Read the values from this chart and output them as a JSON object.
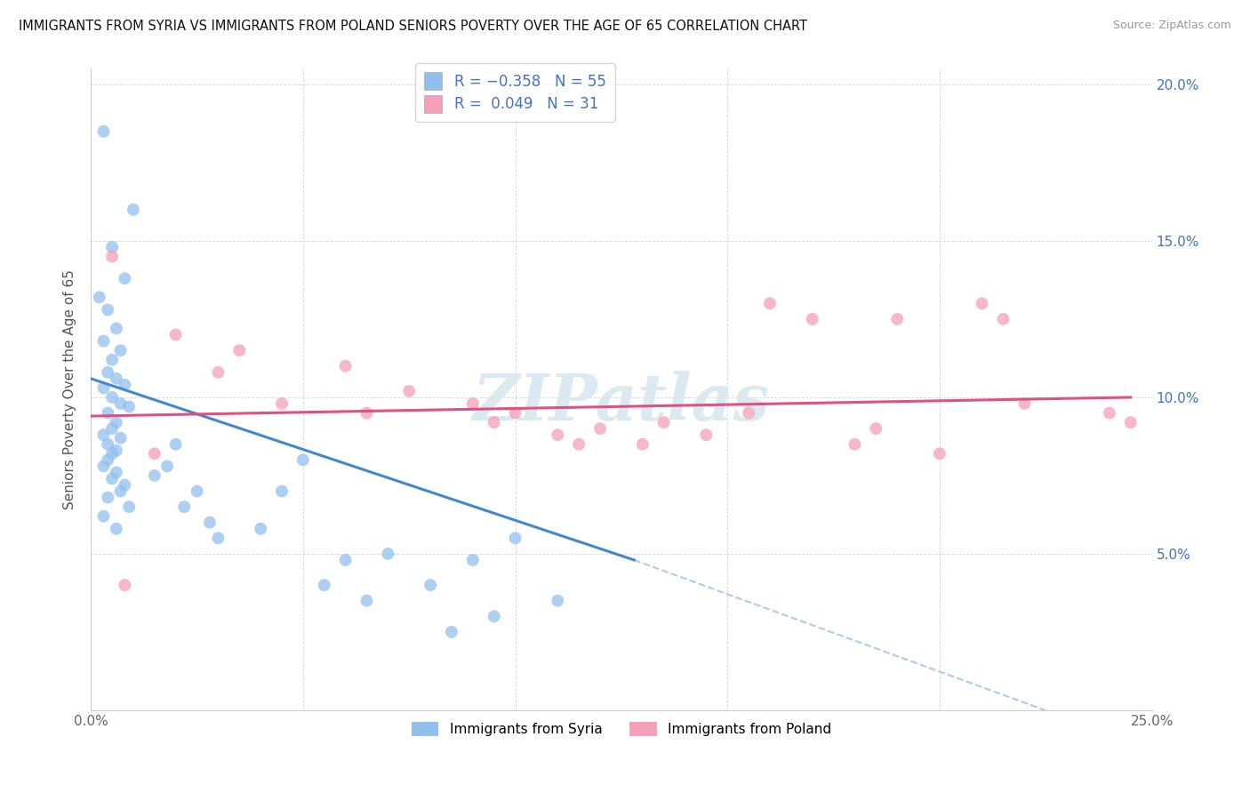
{
  "title": "IMMIGRANTS FROM SYRIA VS IMMIGRANTS FROM POLAND SENIORS POVERTY OVER THE AGE OF 65 CORRELATION CHART",
  "source": "Source: ZipAtlas.com",
  "ylabel": "Seniors Poverty Over the Age of 65",
  "xlim": [
    0.0,
    0.25
  ],
  "ylim": [
    0.0,
    0.205
  ],
  "syria_color": "#90c0ee",
  "poland_color": "#f4a0b8",
  "syria_R": -0.358,
  "syria_N": 55,
  "poland_R": 0.049,
  "poland_N": 31,
  "syria_line_color": "#4488cc",
  "poland_line_color": "#e05080",
  "dashed_line_color": "#aaccee",
  "watermark": "ZIPatlas",
  "legend_label_syria": "Immigrants from Syria",
  "legend_label_poland": "Immigrants from Poland",
  "syria_scatter_x": [
    0.003,
    0.01,
    0.005,
    0.008,
    0.002,
    0.004,
    0.006,
    0.003,
    0.007,
    0.005,
    0.004,
    0.006,
    0.008,
    0.003,
    0.005,
    0.007,
    0.009,
    0.004,
    0.006,
    0.005,
    0.003,
    0.007,
    0.004,
    0.006,
    0.005,
    0.004,
    0.003,
    0.006,
    0.005,
    0.008,
    0.007,
    0.004,
    0.009,
    0.003,
    0.006,
    0.02,
    0.018,
    0.015,
    0.025,
    0.022,
    0.028,
    0.03,
    0.05,
    0.045,
    0.04,
    0.06,
    0.055,
    0.065,
    0.1,
    0.09,
    0.08,
    0.11,
    0.095,
    0.085,
    0.07
  ],
  "syria_scatter_y": [
    0.185,
    0.16,
    0.148,
    0.138,
    0.132,
    0.128,
    0.122,
    0.118,
    0.115,
    0.112,
    0.108,
    0.106,
    0.104,
    0.103,
    0.1,
    0.098,
    0.097,
    0.095,
    0.092,
    0.09,
    0.088,
    0.087,
    0.085,
    0.083,
    0.082,
    0.08,
    0.078,
    0.076,
    0.074,
    0.072,
    0.07,
    0.068,
    0.065,
    0.062,
    0.058,
    0.085,
    0.078,
    0.075,
    0.07,
    0.065,
    0.06,
    0.055,
    0.08,
    0.07,
    0.058,
    0.048,
    0.04,
    0.035,
    0.055,
    0.048,
    0.04,
    0.035,
    0.03,
    0.025,
    0.05
  ],
  "poland_scatter_x": [
    0.005,
    0.02,
    0.03,
    0.035,
    0.045,
    0.06,
    0.065,
    0.075,
    0.09,
    0.095,
    0.1,
    0.11,
    0.115,
    0.12,
    0.13,
    0.135,
    0.145,
    0.155,
    0.16,
    0.17,
    0.18,
    0.185,
    0.19,
    0.2,
    0.21,
    0.215,
    0.22,
    0.24,
    0.245,
    0.008,
    0.015
  ],
  "poland_scatter_y": [
    0.145,
    0.12,
    0.108,
    0.115,
    0.098,
    0.11,
    0.095,
    0.102,
    0.098,
    0.092,
    0.095,
    0.088,
    0.085,
    0.09,
    0.085,
    0.092,
    0.088,
    0.095,
    0.13,
    0.125,
    0.085,
    0.09,
    0.125,
    0.082,
    0.13,
    0.125,
    0.098,
    0.095,
    0.092,
    0.04,
    0.082
  ],
  "syria_line_x": [
    0.0,
    0.128
  ],
  "syria_line_y": [
    0.106,
    0.048
  ],
  "poland_line_x": [
    0.0,
    0.245
  ],
  "poland_line_y": [
    0.094,
    0.1
  ],
  "dashed_line_x": [
    0.128,
    0.245
  ],
  "dashed_line_y": [
    0.048,
    -0.01
  ]
}
